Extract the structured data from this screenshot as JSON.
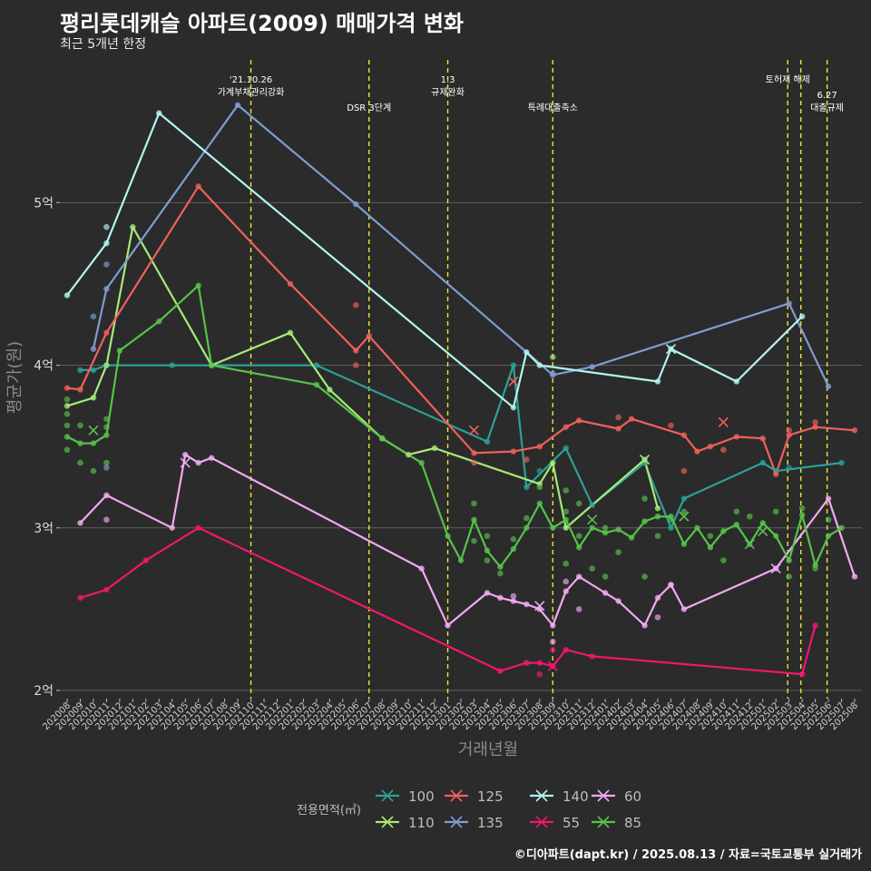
{
  "header": {
    "title": "평리롯데캐슬 아파트(2009) 매매가격 변화",
    "subtitle": "최근 5개년 한정"
  },
  "caption": "©디아파트(dapt.kr) / 2025.08.13 / 자료=국토교통부 실거래가",
  "colors": {
    "100": "#2aa198",
    "110": "#a6ea7a",
    "125": "#f0605d",
    "135": "#7f9dd0",
    "140": "#b2f5ef",
    "55": "#f2166e",
    "60": "#f2aaf2",
    "85": "#57c24b"
  },
  "chart_data": {
    "type": "line",
    "title": "평리롯데캐슬 아파트(2009) 매매가격 변화",
    "subtitle": "최근 5개년 한정",
    "xlabel": "거래년월",
    "ylabel": "평균가(원)",
    "ylim": [
      1.95,
      5.9
    ],
    "yticks": [
      2,
      3,
      4,
      5
    ],
    "ytick_labels": [
      "2억",
      "3억",
      "4억",
      "5억"
    ],
    "categories": [
      "202008",
      "202009",
      "202010",
      "202011",
      "202012",
      "202101",
      "202102",
      "202103",
      "202104",
      "202105",
      "202106",
      "202107",
      "202108",
      "202109",
      "202110",
      "202111",
      "202112",
      "202201",
      "202202",
      "202203",
      "202204",
      "202205",
      "202206",
      "202207",
      "202208",
      "202209",
      "202210",
      "202211",
      "202212",
      "202301",
      "202302",
      "202303",
      "202304",
      "202305",
      "202306",
      "202307",
      "202308",
      "202309",
      "202310",
      "202311",
      "202312",
      "202401",
      "202402",
      "202403",
      "202404",
      "202405",
      "202406",
      "202407",
      "202408",
      "202409",
      "202410",
      "202411",
      "202412",
      "202501",
      "202502",
      "202503",
      "202504",
      "202505",
      "202506",
      "202507",
      "202508"
    ],
    "legend_title": "전용면적(㎡)",
    "legend_entries": [
      "100",
      "110",
      "125",
      "135",
      "140",
      "55",
      "60",
      "85"
    ],
    "series": [
      {
        "name": "100",
        "points": [
          [
            1,
            3.97
          ],
          [
            2,
            3.97
          ],
          [
            3,
            4.0
          ],
          [
            8,
            4.0
          ],
          [
            19,
            4.0
          ],
          [
            32,
            3.53
          ],
          [
            34,
            4.0
          ],
          [
            35,
            3.25
          ],
          [
            38,
            3.49
          ],
          [
            40,
            3.14
          ],
          [
            44,
            3.4
          ],
          [
            46,
            3.0
          ],
          [
            47,
            3.18
          ],
          [
            53,
            3.4
          ],
          [
            54,
            3.35
          ],
          [
            59,
            3.4
          ]
        ]
      },
      {
        "name": "110",
        "points": [
          [
            0,
            3.75
          ],
          [
            2,
            3.8
          ],
          [
            3,
            4.0
          ],
          [
            5,
            4.85
          ],
          [
            11,
            4.0
          ],
          [
            17,
            4.2
          ],
          [
            20,
            3.85
          ],
          [
            24,
            3.55
          ],
          [
            26,
            3.45
          ],
          [
            28,
            3.49
          ],
          [
            36,
            3.27
          ],
          [
            37,
            3.4
          ],
          [
            38,
            3.0
          ],
          [
            44,
            3.42
          ],
          [
            45,
            3.12
          ]
        ]
      },
      {
        "name": "125",
        "points": [
          [
            0,
            3.86
          ],
          [
            1,
            3.85
          ],
          [
            3,
            4.2
          ],
          [
            10,
            5.1
          ],
          [
            17,
            4.5
          ],
          [
            22,
            4.09
          ],
          [
            23,
            4.18
          ],
          [
            31,
            3.46
          ],
          [
            34,
            3.47
          ],
          [
            36,
            3.5
          ],
          [
            38,
            3.62
          ],
          [
            39,
            3.66
          ],
          [
            42,
            3.61
          ],
          [
            43,
            3.67
          ],
          [
            47,
            3.57
          ],
          [
            48,
            3.47
          ],
          [
            49,
            3.5
          ],
          [
            51,
            3.56
          ],
          [
            53,
            3.55
          ],
          [
            54,
            3.33
          ],
          [
            55,
            3.57
          ],
          [
            57,
            3.62
          ],
          [
            60,
            3.6
          ]
        ]
      },
      {
        "name": "135",
        "points": [
          [
            2,
            4.1
          ],
          [
            3,
            4.47
          ],
          [
            13,
            5.6
          ],
          [
            22,
            4.99
          ],
          [
            37,
            3.94
          ],
          [
            40,
            3.99
          ],
          [
            55,
            4.38
          ],
          [
            58,
            3.87
          ]
        ]
      },
      {
        "name": "140",
        "points": [
          [
            0,
            4.43
          ],
          [
            3,
            4.75
          ],
          [
            7,
            5.55
          ],
          [
            34,
            3.74
          ],
          [
            35,
            4.08
          ],
          [
            36,
            4.0
          ],
          [
            45,
            3.9
          ],
          [
            46,
            4.1
          ],
          [
            51,
            3.9
          ],
          [
            56,
            4.3
          ]
        ]
      },
      {
        "name": "55",
        "points": [
          [
            1,
            2.57
          ],
          [
            3,
            2.62
          ],
          [
            6,
            2.8
          ],
          [
            10,
            3.0
          ],
          [
            33,
            2.12
          ],
          [
            35,
            2.17
          ],
          [
            36,
            2.17
          ],
          [
            37,
            2.15
          ],
          [
            38,
            2.25
          ],
          [
            40,
            2.21
          ],
          [
            56,
            2.1
          ],
          [
            57,
            2.4
          ]
        ]
      },
      {
        "name": "60",
        "points": [
          [
            1,
            3.03
          ],
          [
            3,
            3.2
          ],
          [
            8,
            3.0
          ],
          [
            9,
            3.45
          ],
          [
            10,
            3.4
          ],
          [
            11,
            3.43
          ],
          [
            27,
            2.75
          ],
          [
            29,
            2.4
          ],
          [
            32,
            2.6
          ],
          [
            33,
            2.57
          ],
          [
            34,
            2.55
          ],
          [
            35,
            2.53
          ],
          [
            36,
            2.5
          ],
          [
            37,
            2.4
          ],
          [
            38,
            2.61
          ],
          [
            39,
            2.7
          ],
          [
            41,
            2.6
          ],
          [
            42,
            2.55
          ],
          [
            44,
            2.4
          ],
          [
            45,
            2.57
          ],
          [
            46,
            2.65
          ],
          [
            47,
            2.5
          ],
          [
            54,
            2.75
          ],
          [
            58,
            3.18
          ],
          [
            60,
            2.7
          ]
        ]
      },
      {
        "name": "85",
        "points": [
          [
            0,
            3.56
          ],
          [
            1,
            3.52
          ],
          [
            2,
            3.52
          ],
          [
            3,
            3.57
          ],
          [
            4,
            4.09
          ],
          [
            7,
            4.27
          ],
          [
            10,
            4.49
          ],
          [
            11,
            4.0
          ],
          [
            19,
            3.88
          ],
          [
            24,
            3.55
          ],
          [
            27,
            3.4
          ],
          [
            29,
            2.95
          ],
          [
            30,
            2.8
          ],
          [
            31,
            3.05
          ],
          [
            32,
            2.86
          ],
          [
            33,
            2.76
          ],
          [
            34,
            2.87
          ],
          [
            35,
            3.0
          ],
          [
            36,
            3.15
          ],
          [
            37,
            3.0
          ],
          [
            38,
            3.05
          ],
          [
            39,
            2.88
          ],
          [
            40,
            3.0
          ],
          [
            41,
            2.97
          ],
          [
            42,
            2.99
          ],
          [
            43,
            2.94
          ],
          [
            44,
            3.04
          ],
          [
            45,
            3.07
          ],
          [
            46,
            3.07
          ],
          [
            47,
            2.9
          ],
          [
            48,
            3.0
          ],
          [
            49,
            2.88
          ],
          [
            50,
            2.98
          ],
          [
            51,
            3.02
          ],
          [
            52,
            2.9
          ],
          [
            53,
            3.03
          ],
          [
            54,
            2.95
          ],
          [
            55,
            2.8
          ],
          [
            56,
            3.08
          ],
          [
            57,
            2.77
          ],
          [
            58,
            2.95
          ],
          [
            59,
            3.0
          ]
        ]
      }
    ],
    "scatter_points": [
      {
        "series": "85",
        "x": 0,
        "y": 3.79
      },
      {
        "series": "85",
        "x": 0,
        "y": 3.7
      },
      {
        "series": "85",
        "x": 0,
        "y": 3.63
      },
      {
        "series": "85",
        "x": 0,
        "y": 3.48
      },
      {
        "series": "85",
        "x": 1,
        "y": 3.63
      },
      {
        "series": "85",
        "x": 1,
        "y": 3.4
      },
      {
        "series": "85",
        "x": 2,
        "y": 3.35
      },
      {
        "series": "85",
        "x": 3,
        "y": 3.67
      },
      {
        "series": "85",
        "x": 3,
        "y": 3.62
      },
      {
        "series": "85",
        "x": 3,
        "y": 3.4
      },
      {
        "series": "135",
        "x": 2,
        "y": 4.3
      },
      {
        "series": "135",
        "x": 3,
        "y": 4.62
      },
      {
        "series": "135",
        "x": 3,
        "y": 3.37
      },
      {
        "series": "140",
        "x": 3,
        "y": 4.85
      },
      {
        "series": "125",
        "x": 22,
        "y": 4.37
      },
      {
        "series": "125",
        "x": 22,
        "y": 4.0
      },
      {
        "series": "125",
        "x": 31,
        "y": 3.4
      },
      {
        "series": "85",
        "x": 31,
        "y": 3.15
      },
      {
        "series": "85",
        "x": 31,
        "y": 2.92
      },
      {
        "series": "85",
        "x": 32,
        "y": 2.95
      },
      {
        "series": "85",
        "x": 32,
        "y": 2.8
      },
      {
        "series": "85",
        "x": 33,
        "y": 2.72
      },
      {
        "series": "85",
        "x": 34,
        "y": 2.93
      },
      {
        "series": "85",
        "x": 35,
        "y": 3.06
      },
      {
        "series": "85",
        "x": 36,
        "y": 3.25
      },
      {
        "series": "85",
        "x": 38,
        "y": 3.23
      },
      {
        "series": "85",
        "x": 38,
        "y": 3.1
      },
      {
        "series": "85",
        "x": 38,
        "y": 2.78
      },
      {
        "series": "85",
        "x": 39,
        "y": 3.15
      },
      {
        "series": "85",
        "x": 39,
        "y": 2.95
      },
      {
        "series": "85",
        "x": 40,
        "y": 2.75
      },
      {
        "series": "85",
        "x": 41,
        "y": 3.0
      },
      {
        "series": "85",
        "x": 41,
        "y": 2.7
      },
      {
        "series": "85",
        "x": 42,
        "y": 2.85
      },
      {
        "series": "85",
        "x": 44,
        "y": 3.18
      },
      {
        "series": "85",
        "x": 44,
        "y": 2.7
      },
      {
        "series": "85",
        "x": 45,
        "y": 2.95
      },
      {
        "series": "85",
        "x": 46,
        "y": 3.05
      },
      {
        "series": "85",
        "x": 47,
        "y": 3.1
      },
      {
        "series": "85",
        "x": 49,
        "y": 2.95
      },
      {
        "series": "85",
        "x": 50,
        "y": 2.8
      },
      {
        "series": "85",
        "x": 51,
        "y": 3.1
      },
      {
        "series": "85",
        "x": 52,
        "y": 3.07
      },
      {
        "series": "85",
        "x": 54,
        "y": 3.1
      },
      {
        "series": "85",
        "x": 55,
        "y": 2.7
      },
      {
        "series": "85",
        "x": 56,
        "y": 3.12
      },
      {
        "series": "85",
        "x": 57,
        "y": 2.75
      },
      {
        "series": "85",
        "x": 58,
        "y": 3.05
      },
      {
        "series": "125",
        "x": 35,
        "y": 3.42
      },
      {
        "series": "125",
        "x": 42,
        "y": 3.68
      },
      {
        "series": "125",
        "x": 46,
        "y": 3.63
      },
      {
        "series": "125",
        "x": 47,
        "y": 3.35
      },
      {
        "series": "125",
        "x": 50,
        "y": 3.48
      },
      {
        "series": "125",
        "x": 55,
        "y": 3.6
      },
      {
        "series": "125",
        "x": 57,
        "y": 3.65
      },
      {
        "series": "60",
        "x": 34,
        "y": 2.58
      },
      {
        "series": "60",
        "x": 37,
        "y": 2.3
      },
      {
        "series": "60",
        "x": 38,
        "y": 2.67
      },
      {
        "series": "60",
        "x": 39,
        "y": 2.5
      },
      {
        "series": "60",
        "x": 45,
        "y": 2.45
      },
      {
        "series": "60",
        "x": 46,
        "y": 2.65
      },
      {
        "series": "60",
        "x": 3,
        "y": 3.05
      },
      {
        "series": "55",
        "x": 36,
        "y": 2.1
      },
      {
        "series": "55",
        "x": 37,
        "y": 2.25
      },
      {
        "series": "100",
        "x": 36,
        "y": 3.35
      },
      {
        "series": "100",
        "x": 55,
        "y": 3.37
      },
      {
        "series": "110",
        "x": 37,
        "y": 4.05
      },
      {
        "series": "135",
        "x": 37,
        "y": 3.95
      }
    ],
    "cross_markers": [
      {
        "series": "85",
        "x": 2,
        "y": 3.6
      },
      {
        "series": "60",
        "x": 9,
        "y": 3.4
      },
      {
        "series": "125",
        "x": 31,
        "y": 3.6
      },
      {
        "series": "125",
        "x": 34,
        "y": 3.9
      },
      {
        "series": "60",
        "x": 36,
        "y": 2.52
      },
      {
        "series": "55",
        "x": 37,
        "y": 2.15
      },
      {
        "series": "85",
        "x": 40,
        "y": 3.05
      },
      {
        "series": "110",
        "x": 44,
        "y": 3.42
      },
      {
        "series": "140",
        "x": 46,
        "y": 4.1
      },
      {
        "series": "85",
        "x": 47,
        "y": 3.07
      },
      {
        "series": "125",
        "x": 50,
        "y": 3.65
      },
      {
        "series": "85",
        "x": 52,
        "y": 2.9
      },
      {
        "series": "85",
        "x": 53,
        "y": 2.98
      },
      {
        "series": "60",
        "x": 54,
        "y": 2.75
      }
    ],
    "vlines": [
      {
        "x": 14.0,
        "label_lines": [
          "'21.10.26",
          "가계부채관리강화"
        ],
        "label_row": 0
      },
      {
        "x": 23.0,
        "label_lines": [
          "DSR 3단계"
        ],
        "label_row": 1
      },
      {
        "x": 29.0,
        "label_lines": [
          "1.3",
          "규제완화"
        ],
        "label_row": 0
      },
      {
        "x": 37.0,
        "label_lines": [
          "특례대출축소"
        ],
        "label_row": 1
      },
      {
        "x": 54.9,
        "label_lines": [
          "토허제 해제"
        ],
        "label_row": 0
      },
      {
        "x": 55.9,
        "label_lines": [],
        "label_row": 0
      },
      {
        "x": 57.9,
        "label_lines": [
          "6.27",
          "대출규제"
        ],
        "label_row": 1
      }
    ]
  }
}
